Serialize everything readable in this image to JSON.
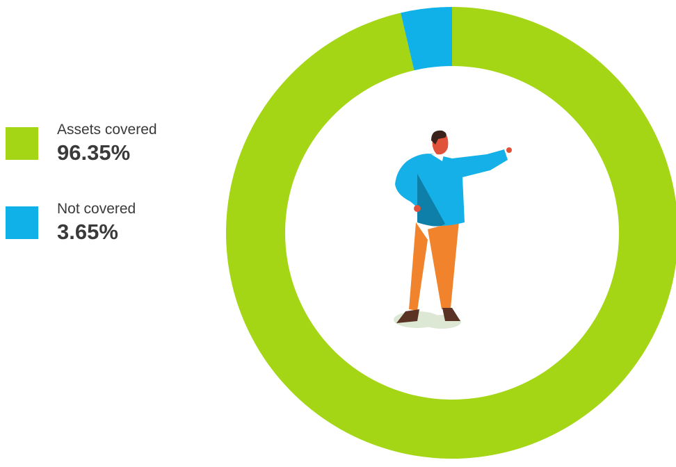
{
  "chart_data": {
    "type": "pie",
    "donut": true,
    "categories": [
      "Assets covered",
      "Not covered"
    ],
    "values": [
      96.35,
      3.65
    ],
    "value_labels": [
      "96.35%",
      "3.65%"
    ],
    "colors": [
      "#a4d615",
      "#0fb1e8"
    ]
  }
}
